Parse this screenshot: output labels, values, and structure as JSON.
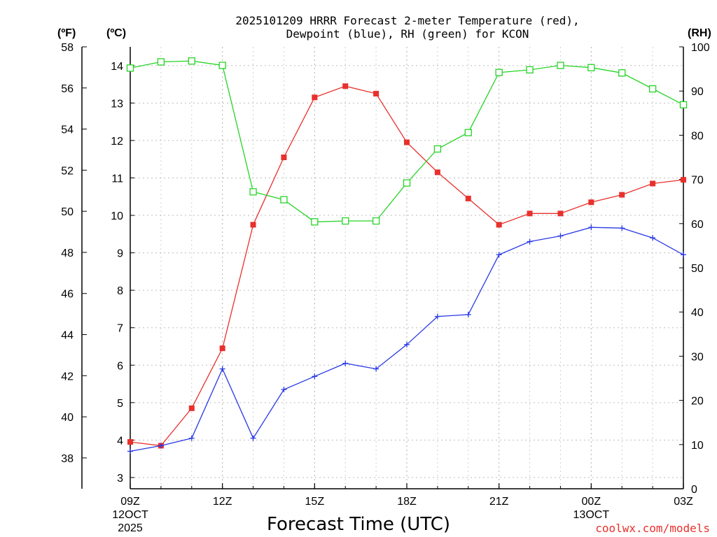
{
  "chart_data": {
    "type": "line",
    "title_line1": "2025101209 HRRR Forecast 2-meter Temperature (red),",
    "title_line2": "Dewpoint (blue), RH (green) for KCON",
    "xlabel": "Forecast Time (UTC)",
    "credit": "coolwx.com/models",
    "axes": {
      "fahrenheit": {
        "unit_label": "(ºF)",
        "ticks": [
          38,
          40,
          42,
          44,
          46,
          48,
          50,
          52,
          54,
          56,
          58
        ],
        "range": [
          36.5,
          58
        ]
      },
      "celsius": {
        "unit_label": "(ºC)",
        "ticks": [
          3,
          4,
          5,
          6,
          7,
          8,
          9,
          10,
          11,
          12,
          13,
          14
        ],
        "range": [
          2.7,
          14.5
        ]
      },
      "rh": {
        "unit_label": "(RH)",
        "ticks": [
          0,
          10,
          20,
          30,
          40,
          50,
          60,
          70,
          80,
          90,
          100
        ],
        "range": [
          0,
          100
        ]
      }
    },
    "x": {
      "range": [
        9,
        27
      ],
      "ticks": [
        {
          "hour": 9,
          "label": "09Z",
          "sub1": "12OCT",
          "sub2": "2025"
        },
        {
          "hour": 12,
          "label": "12Z",
          "sub1": "",
          "sub2": ""
        },
        {
          "hour": 15,
          "label": "15Z",
          "sub1": "",
          "sub2": ""
        },
        {
          "hour": 18,
          "label": "18Z",
          "sub1": "",
          "sub2": ""
        },
        {
          "hour": 21,
          "label": "21Z",
          "sub1": "",
          "sub2": ""
        },
        {
          "hour": 24,
          "label": "00Z",
          "sub1": "13OCT",
          "sub2": ""
        },
        {
          "hour": 27,
          "label": "03Z",
          "sub1": "",
          "sub2": ""
        }
      ]
    },
    "hours": [
      9,
      10,
      11,
      12,
      13,
      14,
      15,
      16,
      17,
      18,
      19,
      20,
      21,
      22,
      23,
      24,
      25,
      26,
      27
    ],
    "series": [
      {
        "name": "Temperature",
        "color": "#e8302c",
        "marker": "filled-square",
        "axis": "celsius",
        "values": [
          3.95,
          3.85,
          4.85,
          6.45,
          9.75,
          11.55,
          13.15,
          13.45,
          13.25,
          11.95,
          11.15,
          10.45,
          9.75,
          10.05,
          10.05,
          10.35,
          10.55,
          10.85,
          10.95
        ]
      },
      {
        "name": "Dewpoint",
        "color": "#2a39e6",
        "marker": "plus",
        "axis": "celsius",
        "values": [
          3.7,
          3.85,
          4.05,
          5.9,
          4.05,
          5.35,
          5.7,
          6.05,
          5.9,
          6.55,
          7.3,
          7.35,
          8.95,
          9.3,
          9.45,
          9.68,
          9.66,
          9.4,
          8.95
        ]
      },
      {
        "name": "RH",
        "color": "#27d427",
        "marker": "open-square",
        "axis": "rh",
        "values": [
          95.2,
          96.6,
          96.8,
          95.8,
          67.2,
          65.4,
          60.4,
          60.6,
          60.6,
          69.2,
          76.9,
          80.6,
          94.2,
          94.8,
          95.8,
          95.3,
          94.1,
          90.5,
          86.9
        ]
      }
    ]
  }
}
